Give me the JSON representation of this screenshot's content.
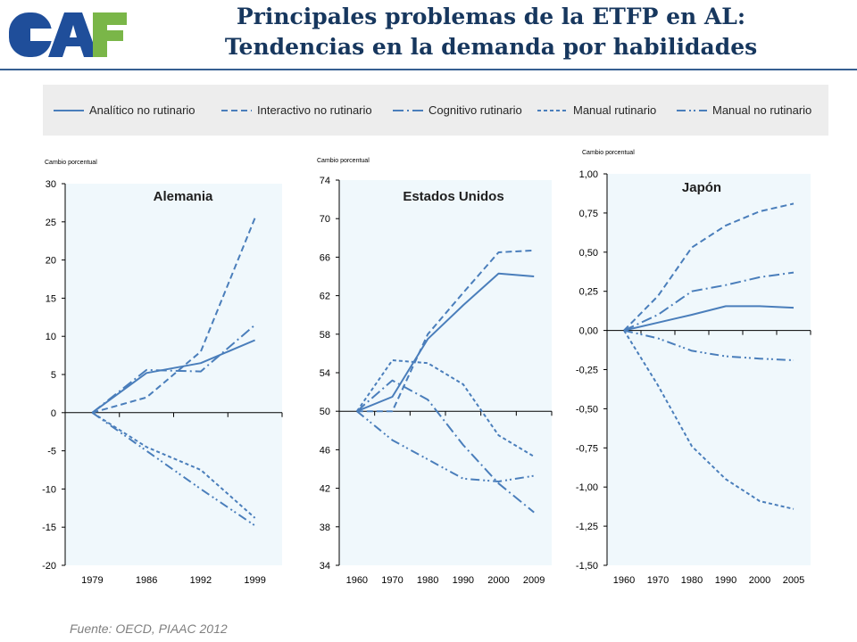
{
  "header": {
    "logo_text": "CAF",
    "title_line1": "Principales problemas de la ETFP en AL:",
    "title_line2": "Tendencias en la demanda por habilidades"
  },
  "legend": {
    "items": [
      {
        "label": "Analítico no rutinario",
        "dash": "solid"
      },
      {
        "label": "Interactivo no rutinario",
        "dash": "dash"
      },
      {
        "label": "Cognitivo rutinario",
        "dash": "longdashdot"
      },
      {
        "label": "Manual rutinario",
        "dash": "shortdash"
      },
      {
        "label": "Manual no rutinario",
        "dash": "dashdotdot"
      }
    ]
  },
  "colors": {
    "line": "#4a7ebb",
    "plot_bg": "#f0f8fc",
    "axis": "#000000",
    "title": "#17375e",
    "logo_blue": "#1f4e9a",
    "logo_green": "#7ab648"
  },
  "chart_data": [
    {
      "type": "line",
      "title": "Alemania",
      "ylabel": "Cambio porcentual",
      "xlabel": "",
      "categories": [
        "1979",
        "1986",
        "1992",
        "1999"
      ],
      "ylim": [
        -20,
        30
      ],
      "yticks": [
        -20,
        -15,
        -10,
        -5,
        0,
        5,
        10,
        15,
        20,
        25,
        30
      ],
      "ytick_labels": [
        "-20",
        "-15",
        "-10",
        "-5",
        "0",
        "5",
        "10",
        "15",
        "20",
        "25",
        "30"
      ],
      "grid": false,
      "series": [
        {
          "name": "Analítico no rutinario",
          "values": [
            0,
            5.2,
            6.5,
            9.5
          ]
        },
        {
          "name": "Interactivo no rutinario",
          "values": [
            0,
            2.0,
            8.0,
            25.5
          ]
        },
        {
          "name": "Cognitivo rutinario",
          "values": [
            0,
            5.6,
            5.4,
            11.5
          ]
        },
        {
          "name": "Manual rutinario",
          "values": [
            0,
            -4.5,
            -7.5,
            -13.8
          ]
        },
        {
          "name": "Manual no rutinario",
          "values": [
            0,
            -5.0,
            -10.0,
            -14.8
          ]
        }
      ]
    },
    {
      "type": "line",
      "title": "Estados Unidos",
      "ylabel": "Cambio porcentual",
      "xlabel": "",
      "categories": [
        "1960",
        "1970",
        "1980",
        "1990",
        "2000",
        "2009"
      ],
      "ylim": [
        34,
        74
      ],
      "yticks": [
        34,
        38,
        42,
        46,
        50,
        54,
        58,
        62,
        66,
        70,
        74
      ],
      "ytick_labels": [
        "34",
        "38",
        "42",
        "46",
        "50",
        "54",
        "58",
        "62",
        "66",
        "70",
        "74"
      ],
      "grid": false,
      "series": [
        {
          "name": "Analítico no rutinario",
          "values": [
            50,
            51.5,
            57.5,
            61,
            64.3,
            64
          ]
        },
        {
          "name": "Interactivo no rutinario",
          "values": [
            50,
            50,
            58,
            62.3,
            66.5,
            66.7
          ]
        },
        {
          "name": "Cognitivo rutinario",
          "values": [
            50,
            53.2,
            51.2,
            46.5,
            42.5,
            39.5
          ]
        },
        {
          "name": "Manual rutinario",
          "values": [
            50,
            55.3,
            55,
            52.8,
            47.5,
            45.3
          ]
        },
        {
          "name": "Manual no rutinario",
          "values": [
            50,
            47,
            45,
            43,
            42.7,
            43.3
          ]
        }
      ]
    },
    {
      "type": "line",
      "title": "Japón",
      "ylabel": "Cambio porcentual",
      "xlabel": "",
      "categories": [
        "1960",
        "1970",
        "1980",
        "1990",
        "2000",
        "2005"
      ],
      "ylim": [
        -1.5,
        1.0
      ],
      "yticks": [
        -1.5,
        -1.25,
        -1.0,
        -0.75,
        -0.5,
        -0.25,
        0,
        0.25,
        0.5,
        0.75,
        1.0
      ],
      "ytick_labels": [
        "-1,50",
        "-1,25",
        "-1,00",
        "-0,75",
        "-0,50",
        "-0,25",
        "0,00",
        "0,25",
        "0,50",
        "0,75",
        "1,00"
      ],
      "grid": false,
      "series": [
        {
          "name": "Analítico no rutinario",
          "values": [
            0,
            0.05,
            0.1,
            0.155,
            0.155,
            0.145
          ]
        },
        {
          "name": "Interactivo no rutinario",
          "values": [
            0,
            0.22,
            0.53,
            0.67,
            0.76,
            0.81
          ]
        },
        {
          "name": "Cognitivo rutinario",
          "values": [
            0,
            0.1,
            0.25,
            0.29,
            0.34,
            0.37
          ]
        },
        {
          "name": "Manual rutinario",
          "values": [
            0,
            -0.35,
            -0.74,
            -0.95,
            -1.09,
            -1.14
          ]
        },
        {
          "name": "Manual no rutinario",
          "values": [
            0,
            -0.05,
            -0.13,
            -0.165,
            -0.18,
            -0.19
          ]
        }
      ]
    }
  ],
  "footer": {
    "source": "Fuente: OECD, PIAAC 2012"
  }
}
